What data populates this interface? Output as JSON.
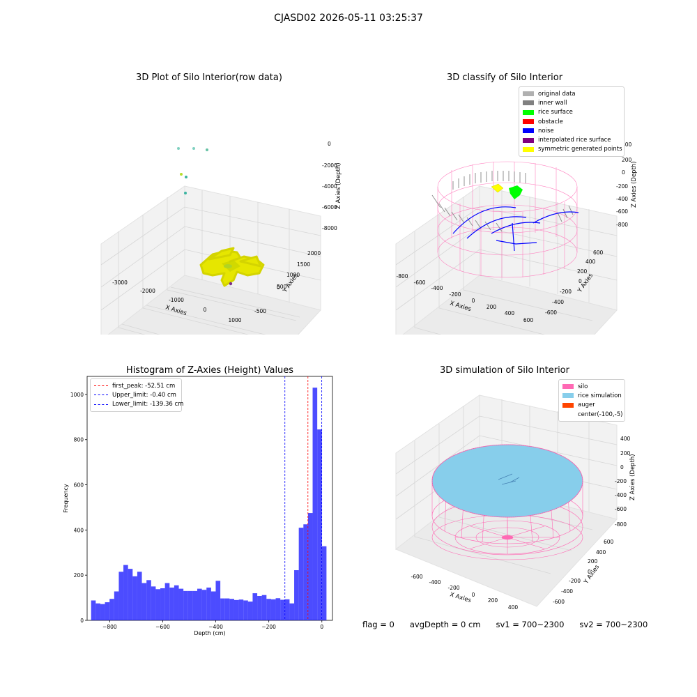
{
  "suptitle": "CJASD02 2026-05-11 03:25:37",
  "panels": {
    "raw": {
      "title": "3D Plot of Silo Interior(row data)",
      "xlabel": "X Axies",
      "ylabel": "Y Axies",
      "zlabel": "Z Axies (Depth)",
      "xticks": [
        "-3000",
        "-2000",
        "-1000",
        "0",
        "1000"
      ],
      "yticks": [
        "-500",
        "0",
        "500",
        "1000",
        "1500",
        "2000"
      ],
      "zticks": [
        "0",
        "-2000",
        "-4000",
        "-6000",
        "-8000"
      ]
    },
    "classify": {
      "title": "3D classify of Silo Interior",
      "xlabel": "X Axies",
      "ylabel": "Y Axies",
      "zlabel": "Z Axies (Depth)",
      "xticks": [
        "-800",
        "-600",
        "-400",
        "-200",
        "0",
        "200",
        "400",
        "600"
      ],
      "yticks": [
        "-600",
        "-400",
        "-200",
        "0",
        "200",
        "400",
        "600"
      ],
      "zticks": [
        "400",
        "200",
        "0",
        "-200",
        "-400",
        "-600",
        "-800"
      ],
      "legend": [
        {
          "label": "original data",
          "color": "#b0b0b0"
        },
        {
          "label": "inner wall",
          "color": "#808080"
        },
        {
          "label": "rice surface",
          "color": "#00ff00"
        },
        {
          "label": "obstacle",
          "color": "#ff0000"
        },
        {
          "label": "noise",
          "color": "#0000ff"
        },
        {
          "label": "interpolated rice surface",
          "color": "#800080"
        },
        {
          "label": "symmetric generated points",
          "color": "#ffff00"
        }
      ]
    },
    "simulation": {
      "title": "3D simulation of Silo Interior",
      "xlabel": "X Axies",
      "ylabel": "Y Axies",
      "zlabel": "Z Axies (Depth)",
      "xticks": [
        "-600",
        "-400",
        "-200",
        "0",
        "200",
        "400"
      ],
      "yticks": [
        "-600",
        "-400",
        "-200",
        "0",
        "200",
        "400",
        "600"
      ],
      "zticks": [
        "400",
        "200",
        "0",
        "-200",
        "-400",
        "-600",
        "-800"
      ],
      "legend": [
        {
          "label": "silo",
          "color": "#ff69b4"
        },
        {
          "label": "rice simulation",
          "color": "#87ceeb"
        },
        {
          "label": "auger",
          "color": "#ff4500"
        },
        {
          "label": "center(-100,-5)",
          "color": ""
        }
      ]
    }
  },
  "chart_data": [
    {
      "type": "bar",
      "title": "Histogram of Z-Axies (Height) Values",
      "xlabel": "Depth (cm)",
      "ylabel": "Frequency",
      "xlim": [
        -885,
        40
      ],
      "ylim": [
        0,
        1080
      ],
      "xticks": [
        -800,
        -600,
        -400,
        -200,
        0
      ],
      "xtick_labels": [
        "−800",
        "−600",
        "−400",
        "−200",
        "0"
      ],
      "yticks": [
        0,
        200,
        400,
        600,
        800,
        1000
      ],
      "bin_start": -870,
      "bin_width": 17.4,
      "values": [
        88,
        75,
        72,
        80,
        95,
        128,
        215,
        245,
        228,
        195,
        215,
        165,
        178,
        150,
        138,
        142,
        165,
        145,
        155,
        140,
        130,
        130,
        130,
        140,
        135,
        145,
        128,
        175,
        97,
        97,
        95,
        90,
        92,
        88,
        83,
        120,
        108,
        112,
        95,
        93,
        98,
        91,
        93,
        75,
        222,
        410,
        425,
        475,
        1030,
        845,
        328
      ],
      "bar_color": "#0000ff",
      "bar_alpha": 0.7,
      "vlines": [
        {
          "label": "first_peak: -52.51 cm",
          "x": -52.51,
          "color": "#ff0000"
        },
        {
          "label": "Upper_limit: -0.40 cm",
          "x": -0.4,
          "color": "#0000ff"
        },
        {
          "label": "Lower_limit: -139.36 cm",
          "x": -139.36,
          "color": "#0000ff"
        }
      ],
      "legend_position": "top-left"
    }
  ],
  "status": {
    "flag": "flag = 0",
    "avg_depth": "avgDepth = 0 cm",
    "sv1": "sv1 = 700~2300",
    "sv2": "sv2 = 700~2300"
  }
}
